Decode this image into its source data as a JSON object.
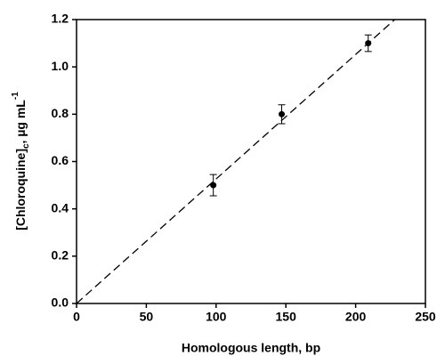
{
  "chart_data": {
    "type": "scatter",
    "xlabel": "Homologous length, bp",
    "ylabel_parts": [
      "[Chloroquine]",
      "c",
      ", µg mL",
      "-1"
    ],
    "x": [
      98,
      147,
      209
    ],
    "values": [
      0.5,
      0.8,
      1.1
    ],
    "errors": [
      0.045,
      0.04,
      0.035
    ],
    "color": "#000000",
    "fit_line": {
      "x": [
        0,
        228
      ],
      "y": [
        0,
        1.2
      ]
    },
    "xlim": [
      0,
      250
    ],
    "xticks": [
      0,
      50,
      100,
      150,
      200,
      250
    ],
    "ylim": [
      0,
      1.2
    ],
    "yticks": [
      {
        "value": 0,
        "label": "0.0"
      },
      0.2,
      0.4,
      0.6,
      0.8,
      {
        "value": 1,
        "label": "1.0"
      },
      1.2
    ],
    "grid": false
  }
}
